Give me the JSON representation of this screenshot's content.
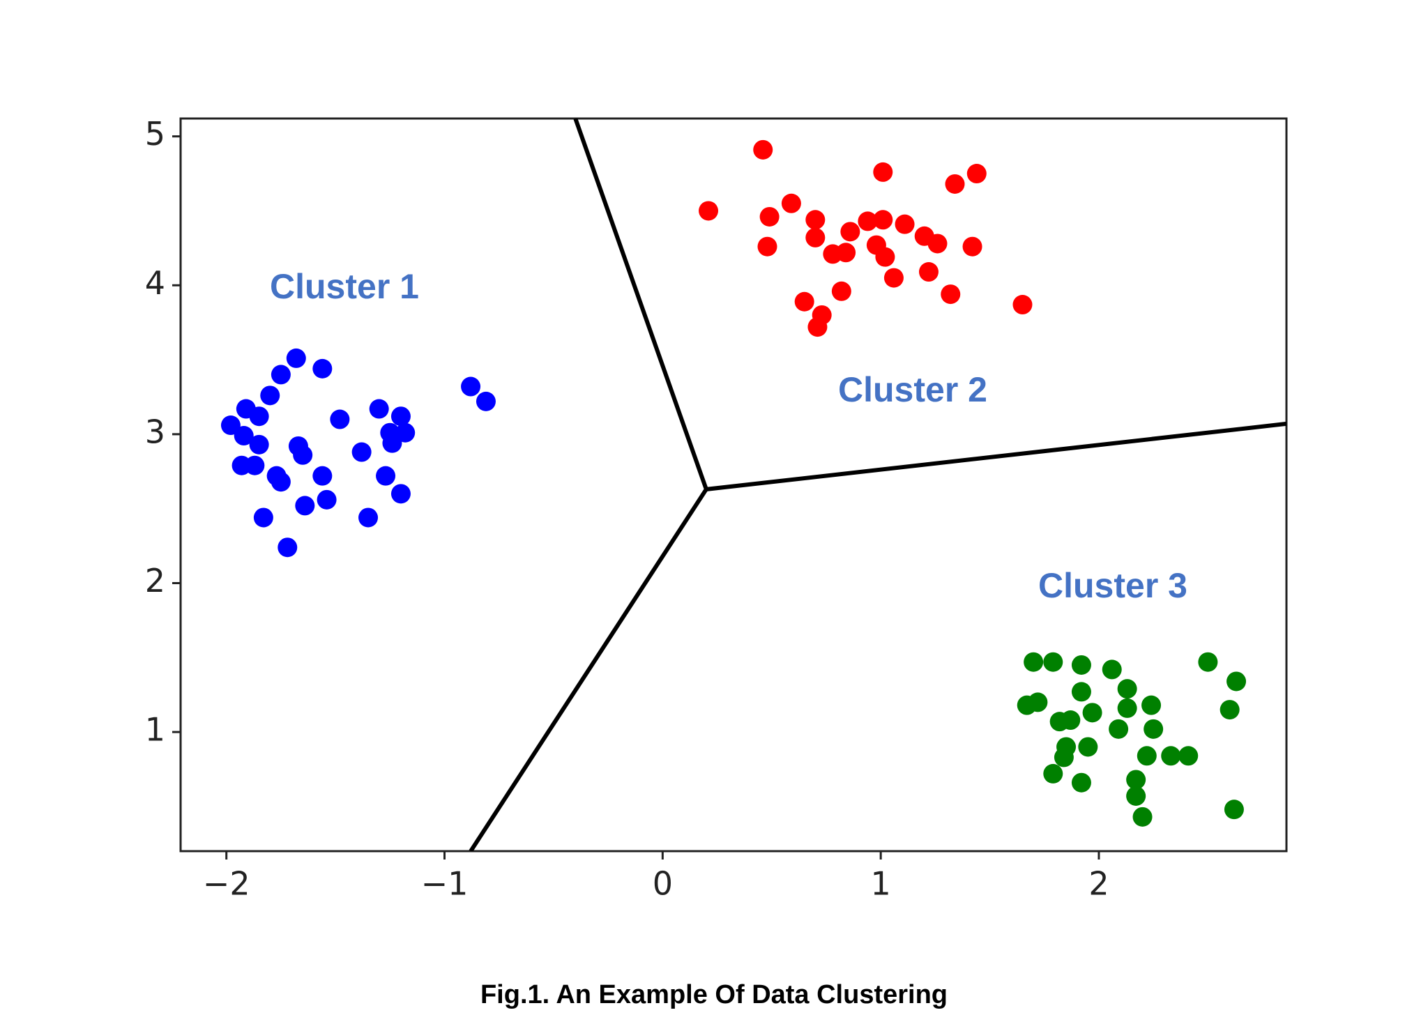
{
  "chart_data": {
    "type": "scatter",
    "caption": "Fig.1. An Example Of Data Clustering",
    "annotations": [
      "Cluster 1",
      "Cluster 2",
      "Cluster 3"
    ],
    "annotation_color": "#4472c4",
    "xlim": [
      -2.21,
      2.86
    ],
    "ylim": [
      0.2,
      5.12
    ],
    "xticks": [
      {
        "value": -2,
        "label": "−2"
      },
      {
        "value": -1,
        "label": "−1"
      },
      0,
      1,
      2
    ],
    "yticks": [
      1,
      2,
      3,
      4,
      5
    ],
    "grid": false,
    "series": [
      {
        "color": "#0000ff",
        "x": [
          -1.98,
          -1.91,
          -1.92,
          -1.85,
          -1.85,
          -1.8,
          -1.75,
          -1.68,
          -1.56,
          -1.93,
          -1.87,
          -1.77,
          -1.75,
          -1.67,
          -1.65,
          -1.56,
          -1.54,
          -1.64,
          -1.83,
          -1.72,
          -1.48,
          -1.3,
          -1.2,
          -1.25,
          -1.18,
          -1.24,
          -1.38,
          -1.27,
          -1.2,
          -1.35,
          -0.88,
          -0.81
        ],
        "values": [
          3.06,
          3.17,
          2.99,
          3.12,
          2.93,
          3.26,
          3.4,
          3.51,
          3.44,
          2.79,
          2.79,
          2.72,
          2.68,
          2.92,
          2.86,
          2.72,
          2.56,
          2.52,
          2.44,
          2.24,
          3.1,
          3.17,
          3.12,
          3.01,
          3.01,
          2.94,
          2.88,
          2.72,
          2.6,
          2.44,
          3.32,
          3.22
        ]
      },
      {
        "color": "#ff0000",
        "x": [
          0.46,
          0.21,
          0.49,
          0.59,
          0.48,
          0.7,
          0.7,
          0.78,
          0.84,
          0.86,
          0.94,
          1.01,
          1.11,
          0.98,
          1.02,
          1.06,
          1.2,
          1.26,
          1.01,
          1.34,
          1.44,
          1.42,
          1.22,
          0.82,
          0.65,
          0.73,
          0.71,
          1.32,
          1.65
        ],
        "values": [
          4.91,
          4.5,
          4.46,
          4.55,
          4.26,
          4.44,
          4.32,
          4.21,
          4.22,
          4.36,
          4.43,
          4.44,
          4.41,
          4.27,
          4.19,
          4.05,
          4.33,
          4.28,
          4.76,
          4.68,
          4.75,
          4.26,
          4.09,
          3.96,
          3.89,
          3.8,
          3.72,
          3.94,
          3.87
        ]
      },
      {
        "color": "#008000",
        "x": [
          1.7,
          1.79,
          1.92,
          2.06,
          2.5,
          2.63,
          2.6,
          1.67,
          1.72,
          1.92,
          2.13,
          1.97,
          2.13,
          2.24,
          1.82,
          1.87,
          2.09,
          2.25,
          1.85,
          1.95,
          1.84,
          2.22,
          2.33,
          2.41,
          1.79,
          1.92,
          2.17,
          2.17,
          2.2,
          2.62
        ],
        "values": [
          1.47,
          1.47,
          1.45,
          1.42,
          1.47,
          1.34,
          1.15,
          1.18,
          1.2,
          1.27,
          1.29,
          1.13,
          1.16,
          1.18,
          1.07,
          1.08,
          1.02,
          1.02,
          0.9,
          0.9,
          0.83,
          0.84,
          0.84,
          0.84,
          0.72,
          0.66,
          0.68,
          0.57,
          0.43,
          0.48
        ]
      }
    ],
    "boundaries": [
      {
        "color": "#000000",
        "x": [
          -0.4,
          0.2,
          2.86
        ],
        "y": [
          5.12,
          2.63,
          3.07
        ]
      },
      {
        "color": "#000000",
        "x": [
          0.2,
          -0.88
        ],
        "y": [
          2.63,
          0.2
        ]
      }
    ]
  }
}
